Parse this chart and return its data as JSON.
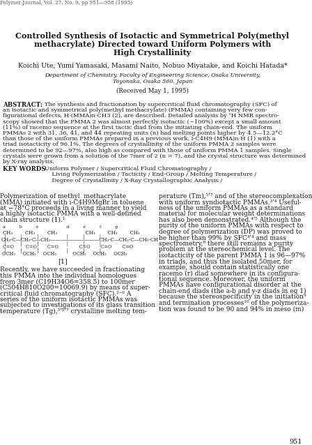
{
  "journal_header": "Polymer Journal, Vol. 27, No. 9, pp 951—958 (1995)",
  "title_line1": "Controlled Synthesis of Isotactic and Symmetrical Poly(methyl",
  "title_line2": "methacrylate) Directed toward Uniform Polymers with",
  "title_line3": "High Crystallinity",
  "authors": "Koichi Ute, Yumi Yamasaki, Masami Naito, Nobuo Miyatake, and Koichi Hatada*",
  "affiliation1": "Department of Chemistry, Faculty of Engineering Science, Osaka University,",
  "affiliation2": "Toyonaka, Osaka 560, Japan",
  "received": "(Received May 1, 1995)",
  "abstract_lines": [
    "ABSTRACT:    The synthesis and fractionation by supercritical fluid chromatography (SFC) of",
    "an isotactic and symmetrical poly(methyl methacrylate) (PMMA) containing very few con-",
    "figurational defects, H·(MMA)n·CH3 (2), are described. Detailed analysis by ¹H NMR spectro-",
    "scopy showed that the PMMA 2 was almost perfectly isotactic (∼100%) except a small amount",
    "(11%) of racemo sequence at the first tactic diad from the initiating chain-end. The uniform",
    "PMMAs 2 with 31, 36, 41, and 44 repeating units (n) had melting points higher by 4.5—12.2°C",
    "than those of the uniform PMMAs prepared in a previous work, i-C4H9·(MMA)n·H (1) with a",
    "triad isotacticity of 96.1%. The degrees of crystallinity of the uniform PMMA 2 samples were",
    "determined to be 92—97%, also high as compared with those of uniform PMMA 1 samples. Single",
    "crystals were grown from a solution of the 7mer of 2 (n = 7), and the crystal structure was determined",
    "by X-ray analysis."
  ],
  "kw_line1": "   KEY WORDS    Uniform Polymer / Supercritical Fluid Chromatography /",
  "kw_line2": "        Living Polymerization / Tacticity / End-Group / Melting Temperature /",
  "kw_line3": "        Degree of Crystallinity / X-Ray Crystallographic Analysis /",
  "col1_lines": [
    "Polymerization of methyl  methacrylate",
    "(MMA) initiated with i-C4H9MgBr in toluene",
    "at −78°C proceeds in a living manner to yield",
    "a highly isotactic PMMA with a well-defined",
    "chain structure (1).¹"
  ],
  "col1_lines2": [
    "Recently, we have succeeded in fractionating",
    "this PMMA into the individual homologues",
    "from 3mer (C19H34O6=358.5) to 100mer",
    "(C504H810O200=10069.9) by means of super-",
    "critical fluid chromatography (SFC).²⁻⁶ A",
    "series of the uniform isotactic PMMAs was",
    "subjected to investigations of its glass transition",
    "temperature (Tg),³ʹ⁵ʹ⁷ crystalline melting tem-"
  ],
  "col2_lines": [
    "perature (Tm),⁵ʹ⁷ and of the stereocomplexation",
    "with uniform syndiotactic PMMAs.³ʹ⁴ Useful-",
    "ness of the uniform PMMAs as a standard",
    "material for molecular weight determinations",
    "has also been demonstrated.⁴ʹ⁵ Although the",
    "purity of the uniform PMMAs with respect to",
    "degree of polymerization (DP) was proved to",
    "be higher than 99% by SFC³ʹ⁴ and mass",
    "spectrometry,⁸ there still remains a purity",
    "problem at the stereochemical level. The",
    "isotacticity of the parent PMMA 1 is 96—97%",
    "in triads, and thus the isolated 50mer, for",
    "example, should contain statistically one",
    "racemo (r) diad somewhere in its configura-",
    "tional sequence. Moreover, the uniform",
    "PMMAs have configurational disorder at the",
    "chain-end diads (the a-b and y-z diads in eq 1)",
    "because the stereospecificity in the initiation⁹",
    "and termination processes¹⁰ of the polymeriza-",
    "tion was found to be 90 and 94% in meso (m)"
  ],
  "page_number": "951",
  "bg_color": "#ffffff",
  "text_color": "#1a1a1a"
}
